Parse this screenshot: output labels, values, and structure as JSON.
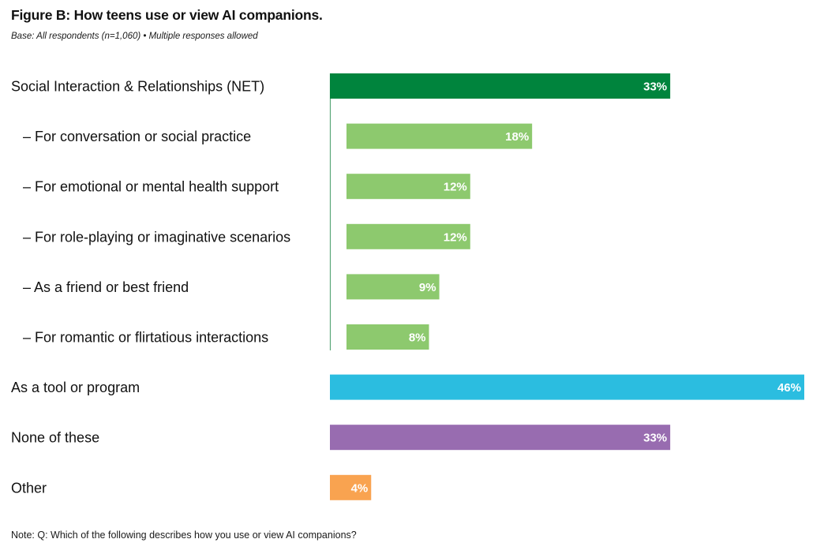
{
  "header": {
    "title": "Figure B: How teens use or view AI companions.",
    "subtitle": "Base: All respondents (n=1,060) • Multiple responses allowed"
  },
  "footer": {
    "note": "Note: Q: Which of the following describes how you use or view AI companions?"
  },
  "colors": {
    "net": "#00843d",
    "sub": "#8dc96e",
    "tool": "#2bbde0",
    "none": "#986cb0",
    "other": "#f9a350",
    "connector": "#5aa878"
  },
  "chart_data": {
    "type": "bar",
    "orientation": "horizontal",
    "title": "Figure B: How teens use or view AI companions.",
    "value_suffix": "%",
    "xlim": [
      0,
      46
    ],
    "categories": [
      {
        "label": "Social Interaction & Relationships (NET)",
        "value": 33,
        "level": 0,
        "color_key": "net"
      },
      {
        "label": "– For conversation or social practice",
        "value": 18,
        "level": 1,
        "color_key": "sub"
      },
      {
        "label": "– For emotional or mental health support",
        "value": 12,
        "level": 1,
        "color_key": "sub"
      },
      {
        "label": "– For role-playing or imaginative scenarios",
        "value": 12,
        "level": 1,
        "color_key": "sub"
      },
      {
        "label": "– As a friend or best friend",
        "value": 9,
        "level": 1,
        "color_key": "sub"
      },
      {
        "label": "– For romantic or flirtatious interactions",
        "value": 8,
        "level": 1,
        "color_key": "sub"
      },
      {
        "label": "As a tool or program",
        "value": 46,
        "level": 0,
        "color_key": "tool"
      },
      {
        "label": "None of these",
        "value": 33,
        "level": 0,
        "color_key": "none"
      },
      {
        "label": "Other",
        "value": 4,
        "level": 0,
        "color_key": "other"
      }
    ]
  }
}
